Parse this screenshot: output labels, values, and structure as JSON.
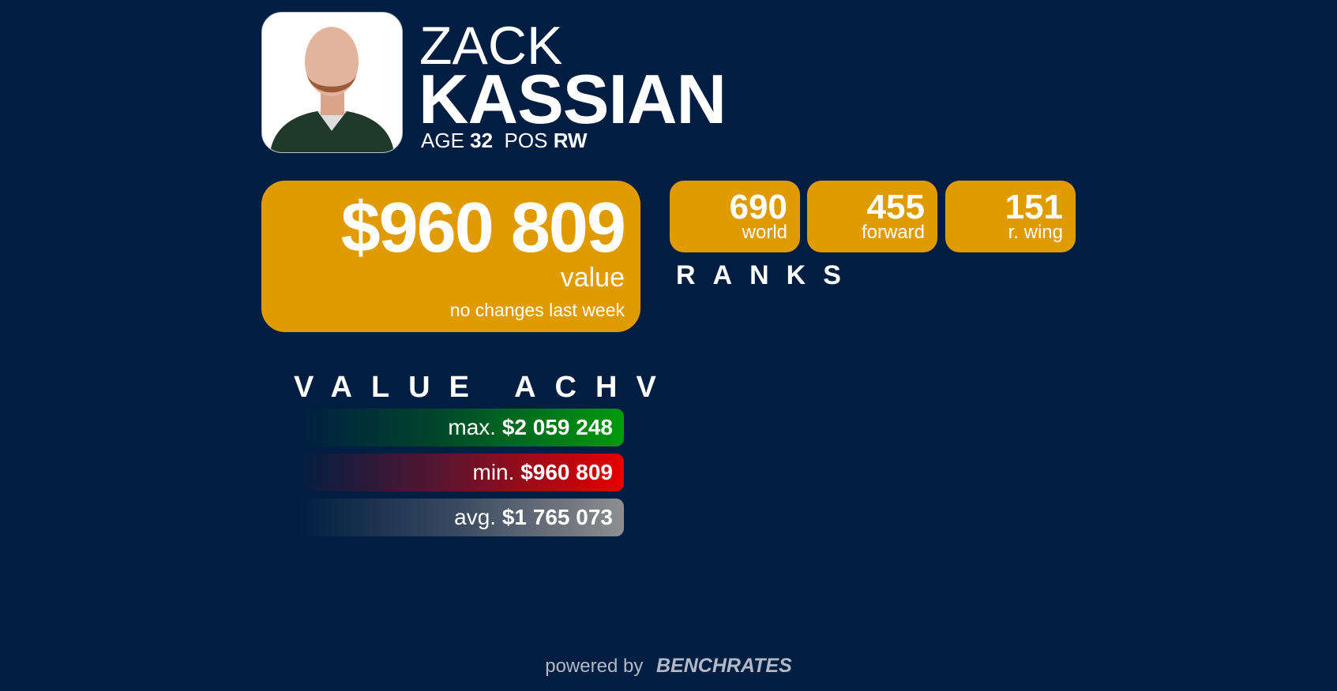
{
  "player": {
    "first_name": "ZACK",
    "last_name": "KASSIAN",
    "age_label": "AGE",
    "age": "32",
    "pos_label": "POS",
    "pos": "RW"
  },
  "value": {
    "amount": "$960 809",
    "label": "value",
    "change": "no changes last week"
  },
  "ranks": {
    "title": "RANKS",
    "items": [
      {
        "rank": "690",
        "label": "world"
      },
      {
        "rank": "455",
        "label": "forward"
      },
      {
        "rank": "151",
        "label": "r. wing"
      }
    ]
  },
  "achievements": {
    "title": "VALUE ACHV",
    "items": [
      {
        "label": "max.",
        "value": "$2 059 248",
        "color": "#009a0c"
      },
      {
        "label": "min.",
        "value": "$960 809",
        "color": "#e60000"
      },
      {
        "label": "avg.",
        "value": "$1 765 073",
        "color": "#8e8e8e"
      }
    ]
  },
  "footer": {
    "powered_by": "powered by",
    "brand": "BENCHRATES"
  },
  "colors": {
    "background": "#001e42",
    "accent": "#e09b00"
  }
}
